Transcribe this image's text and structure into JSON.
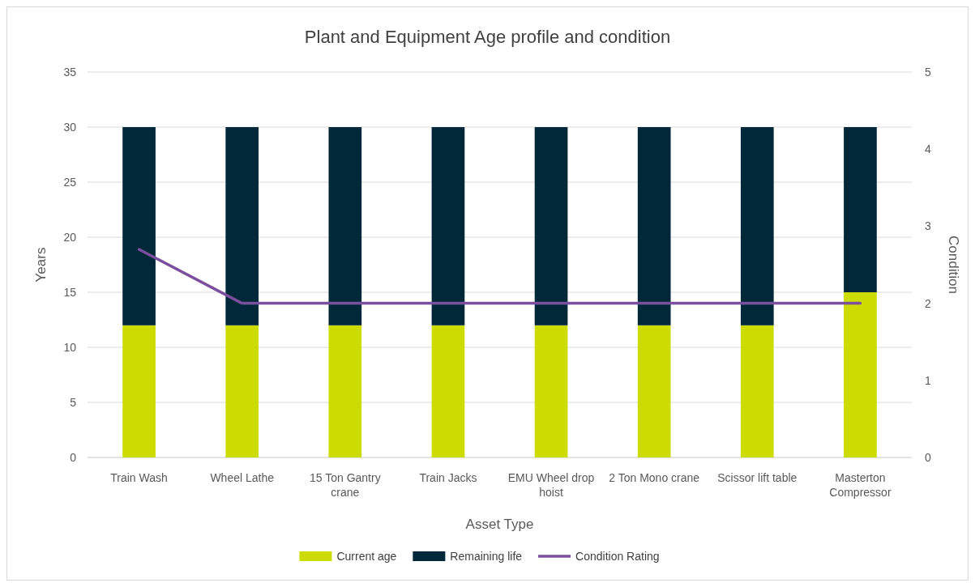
{
  "chart_data": {
    "type": "bar",
    "title": "Plant and Equipment Age profile and condition",
    "xlabel": "Asset Type",
    "ylabel": "Years",
    "y2label": "Condition",
    "categories": [
      "Train Wash",
      "Wheel Lathe",
      "15 Ton Gantry crane",
      "Train Jacks",
      "EMU Wheel drop hoist",
      "2 Ton Mono crane",
      "Scissor lift table",
      "Masterton Compressor"
    ],
    "stacked": true,
    "series": [
      {
        "name": "Current age",
        "color": "#cddc00",
        "values": [
          12,
          12,
          12,
          12,
          12,
          12,
          12,
          15
        ]
      },
      {
        "name": "Remaining life",
        "color": "#012838",
        "values": [
          18,
          18,
          18,
          18,
          18,
          18,
          18,
          15
        ]
      },
      {
        "name": "Condition Rating",
        "type": "line",
        "axis": "y2",
        "color": "#7b4f9d",
        "values": [
          2.7,
          2,
          2,
          2,
          2,
          2,
          2,
          2
        ]
      }
    ],
    "ylim": [
      0,
      35
    ],
    "yticks": [
      0,
      5,
      10,
      15,
      20,
      25,
      30,
      35
    ],
    "y2lim": [
      0,
      5
    ],
    "y2ticks": [
      0,
      1,
      2,
      3,
      4,
      5
    ],
    "grid": "y",
    "legend": "bottom",
    "marker": "none",
    "line_style": "solid"
  }
}
